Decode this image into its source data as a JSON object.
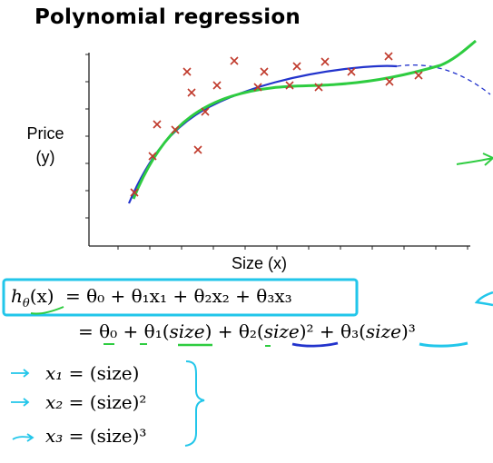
{
  "slide": {
    "title": "Polynomial regression"
  },
  "chart_data": {
    "type": "scatter",
    "ylabel_lines": [
      "Price",
      "(y)"
    ],
    "xlabel": "Size (x)",
    "grid": false,
    "points": [
      [
        148,
        212
      ],
      [
        168,
        172
      ],
      [
        173,
        137
      ],
      [
        193,
        143
      ],
      [
        206,
        79
      ],
      [
        211,
        102
      ],
      [
        218,
        165
      ],
      [
        226,
        123
      ],
      [
        239,
        94
      ],
      [
        258,
        67
      ],
      [
        284,
        96
      ],
      [
        291,
        79
      ],
      [
        319,
        94
      ],
      [
        327,
        73
      ],
      [
        351,
        96
      ],
      [
        358,
        68
      ],
      [
        387,
        79
      ],
      [
        428,
        62
      ],
      [
        429,
        90
      ],
      [
        461,
        83
      ]
    ],
    "point_color": "#c0392b",
    "series": [
      {
        "kind": "quadratic-extension",
        "color": "#2233cc",
        "dashed": true
      },
      {
        "kind": "quadratic",
        "color": "#2233cc"
      },
      {
        "kind": "cubic",
        "color": "#22cc22"
      }
    ]
  },
  "equations": {
    "line1": {
      "lhs_h": "h",
      "lhs_theta": "θ",
      "lhs_x": "(x)",
      "rhs": "= θ₀ + θ₁x₁ + θ₂x₂ + θ₃x₃"
    },
    "line2": {
      "eq": "= θ₀ + θ₁(",
      "size1": "size",
      "mid": ") + θ₂(",
      "size2": "size",
      "mid2": ")² + θ₃(",
      "size3": "size",
      "end": ")³"
    },
    "defs": [
      {
        "lhs": "x₁",
        "rhs": "= (size)"
      },
      {
        "lhs": "x₂",
        "rhs": "= (size)²"
      },
      {
        "lhs": "x₃",
        "rhs": "= (size)³"
      }
    ]
  },
  "annotation_colors": {
    "cyan": "#22c6ea",
    "green": "#2ecc40",
    "blue": "#2233cc"
  }
}
